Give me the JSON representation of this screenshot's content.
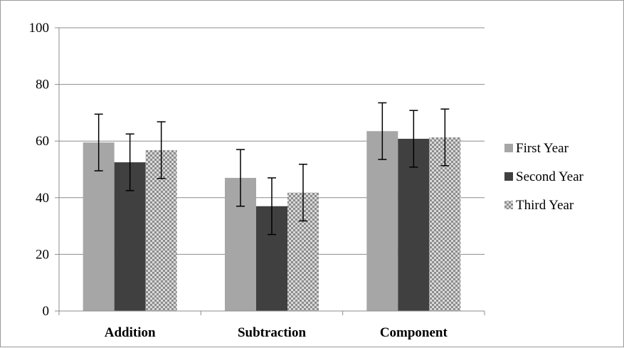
{
  "chart_data": {
    "type": "bar",
    "categories": [
      "Addition",
      "Subtraction",
      "Component"
    ],
    "series": [
      {
        "name": "First Year",
        "values": [
          59.5,
          47.0,
          63.5
        ],
        "error": [
          10,
          10,
          10
        ],
        "color": "#a6a6a6",
        "pattern": "solid"
      },
      {
        "name": "Second Year",
        "values": [
          52.5,
          37.0,
          60.8
        ],
        "error": [
          10,
          10,
          10
        ],
        "color": "#404040",
        "pattern": "solid"
      },
      {
        "name": "Third Year",
        "values": [
          56.8,
          41.8,
          61.3
        ],
        "error": [
          10,
          10,
          10
        ],
        "color": "#8c8c8c",
        "pattern": "checker"
      }
    ],
    "ylim": [
      0,
      100
    ],
    "yticks": [
      0,
      20,
      40,
      60,
      80,
      100
    ],
    "grid": true,
    "legend_position": "right",
    "title": "",
    "xlabel": "",
    "ylabel": ""
  }
}
